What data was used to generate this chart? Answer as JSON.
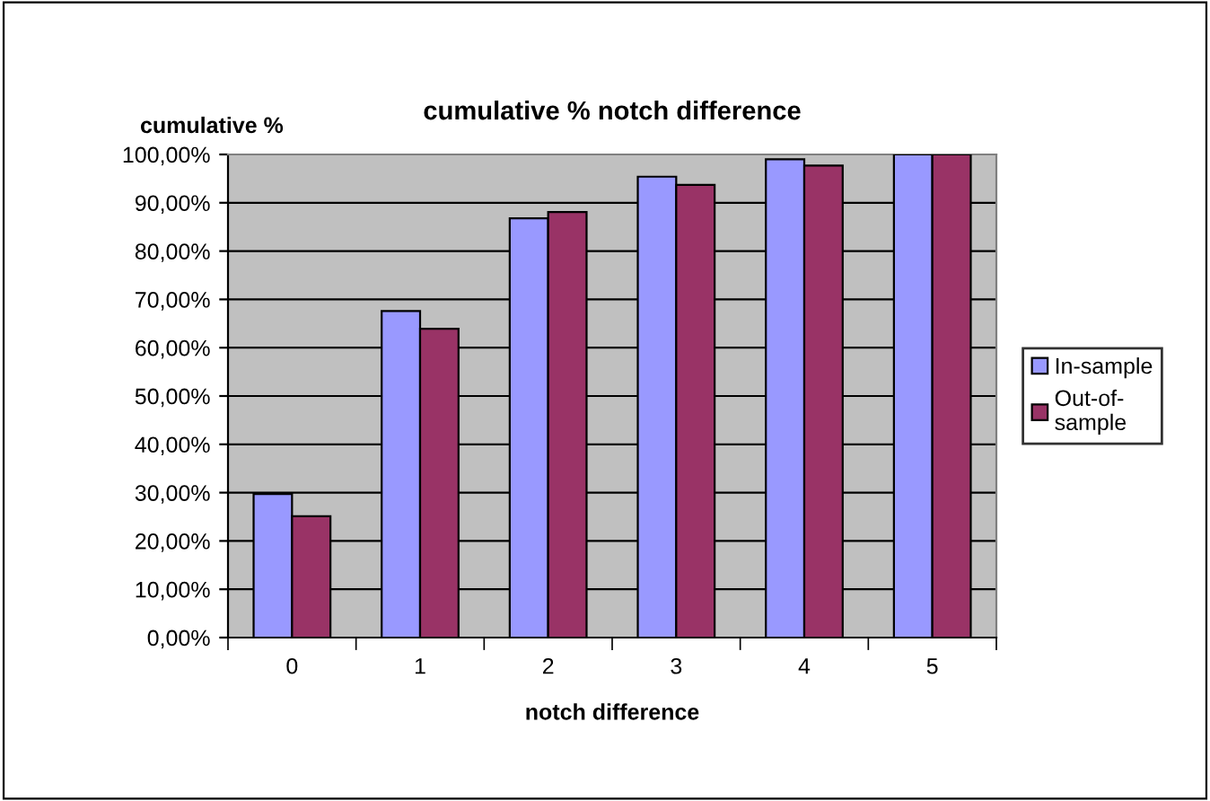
{
  "chart_data": {
    "type": "bar",
    "title": "cumulative % notch difference",
    "xlabel": "notch difference",
    "ylabel": "cumulative %",
    "categories": [
      "0",
      "1",
      "2",
      "3",
      "4",
      "5"
    ],
    "series": [
      {
        "name": "In-sample",
        "color": "#9999ff",
        "values": [
          29.7,
          67.6,
          86.8,
          95.4,
          99.0,
          100
        ]
      },
      {
        "name": "Out-of-\nsample",
        "color": "#993366",
        "values": [
          25.1,
          63.9,
          88.1,
          93.7,
          97.7,
          100
        ]
      }
    ],
    "ylim": [
      0,
      100
    ],
    "yticks": [
      {
        "value": 0,
        "label": "0,00%"
      },
      {
        "value": 10,
        "label": "10,00%"
      },
      {
        "value": 20,
        "label": "20,00%"
      },
      {
        "value": 30,
        "label": "30,00%"
      },
      {
        "value": 40,
        "label": "40,00%"
      },
      {
        "value": 50,
        "label": "50,00%"
      },
      {
        "value": 60,
        "label": "60,00%"
      },
      {
        "value": 70,
        "label": "70,00%"
      },
      {
        "value": 80,
        "label": "80,00%"
      },
      {
        "value": 90,
        "label": "90,00%"
      },
      {
        "value": 100,
        "label": "100,00%"
      }
    ],
    "grid": "y",
    "legend": "right"
  }
}
